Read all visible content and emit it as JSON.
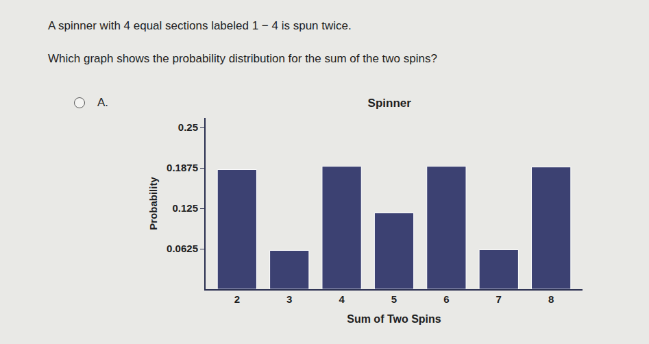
{
  "question": {
    "line1": "A spinner with 4 equal sections labeled 1 − 4 is spun twice.",
    "line2": "Which graph shows the probability distribution for the sum of the two spins?",
    "option": "A."
  },
  "chart_data": {
    "type": "bar",
    "title": "Spinner",
    "x_label": "Sum of Two Spins",
    "y_label": "Probability",
    "categories": [
      "2",
      "3",
      "4",
      "5",
      "6",
      "7",
      "8"
    ],
    "values": [
      0.185,
      0.06,
      0.19,
      0.118,
      0.19,
      0.061,
      0.189
    ],
    "color": "#3c4172",
    "ylim": [
      0,
      0.265
    ],
    "yticks": [
      0.0625,
      0.125,
      0.1875,
      0.25
    ],
    "grid": false
  }
}
